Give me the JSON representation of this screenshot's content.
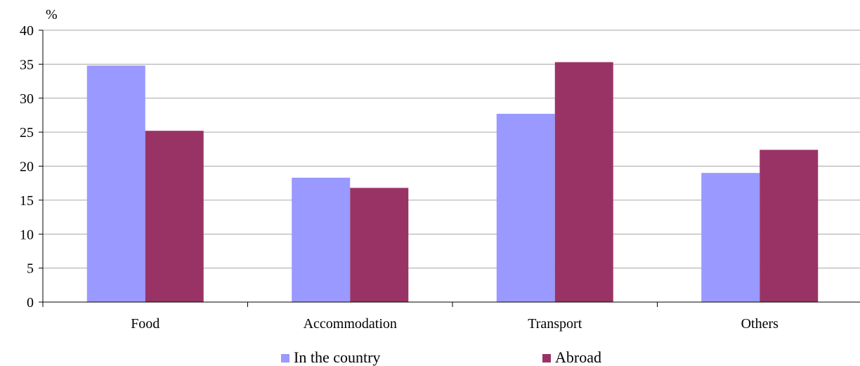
{
  "chart_data": {
    "type": "bar",
    "ylabel": "%",
    "ylim": [
      0,
      40
    ],
    "yticks": [
      0,
      5,
      10,
      15,
      20,
      25,
      30,
      35,
      40
    ],
    "grid": true,
    "legend_position": "bottom",
    "categories": [
      "Food",
      "Accommodation",
      "Transport",
      "Others"
    ],
    "series": [
      {
        "name": "In the country",
        "color": "#9999ff",
        "values": [
          34.8,
          18.3,
          27.7,
          19.0
        ]
      },
      {
        "name": "Abroad",
        "color": "#993366",
        "values": [
          25.2,
          16.8,
          35.3,
          22.4
        ]
      }
    ]
  }
}
